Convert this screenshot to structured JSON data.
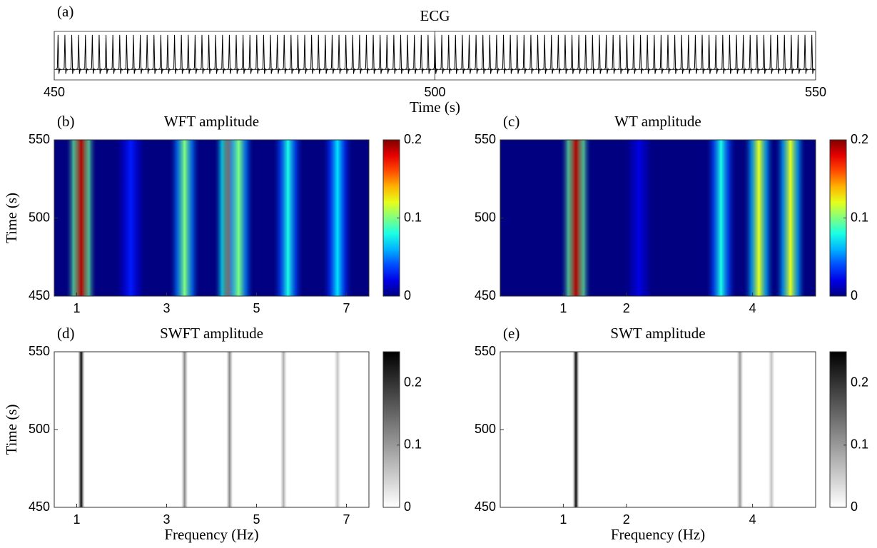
{
  "chart_data": [
    {
      "type": "line",
      "panel_label": "(a)",
      "title": "ECG",
      "xlabel": "Time (s)",
      "xlim": [
        450,
        550
      ],
      "xticks": [
        450,
        500,
        550
      ],
      "ylim": [
        -0.3,
        1.1
      ],
      "color": "#000000",
      "x": [
        450.5,
        451.4,
        452.3,
        453.2,
        454.1,
        455,
        455.9,
        456.8,
        457.7,
        458.6,
        459.5,
        460.4,
        461.3,
        462.2,
        463.1,
        464,
        464.9,
        465.8,
        466.7,
        467.6,
        468.5,
        469.4,
        470.3,
        471.2,
        472.1,
        473,
        473.9,
        474.8,
        475.7,
        476.6,
        477.5,
        478.4,
        479.3,
        480.2,
        481.1,
        482,
        482.9,
        483.8,
        484.7,
        485.6,
        486.5,
        487.4,
        488.3,
        489.2,
        490.1,
        491,
        491.9,
        492.8,
        493.7,
        494.6,
        495.5,
        496.4,
        497.3,
        498.2,
        499.1,
        500,
        500.9,
        501.8,
        502.7,
        503.6,
        504.5,
        505.4,
        506.3,
        507.2,
        508.1,
        509,
        509.9,
        510.8,
        511.7,
        512.6,
        513.5,
        514.4,
        515.3,
        516.2,
        517.1,
        518,
        518.9,
        519.8,
        520.7,
        521.6,
        522.5,
        523.4,
        524.3,
        525.2,
        526.1,
        527,
        527.9,
        528.8,
        529.7,
        530.6,
        531.5,
        532.4,
        533.3,
        534.2,
        535.1,
        536,
        536.9,
        537.8,
        538.7,
        539.6,
        540.5,
        541.4,
        542.3,
        543.2,
        544.1,
        545,
        545.9,
        546.8,
        547.7,
        548.6,
        549.5
      ],
      "values": [
        1,
        1,
        1,
        1,
        1,
        1,
        1,
        1,
        1,
        1,
        1,
        1,
        1,
        1,
        1,
        1,
        1,
        1,
        1,
        1,
        1,
        1,
        1,
        1,
        1,
        1,
        1,
        1,
        1,
        1,
        1,
        1,
        1,
        1,
        1,
        1,
        1,
        1,
        1,
        1,
        1,
        1,
        1,
        1,
        1,
        1,
        1,
        1,
        1,
        1,
        1,
        1,
        1,
        1,
        1,
        1,
        1,
        1,
        1,
        1,
        1,
        1,
        1,
        1,
        1,
        1,
        1,
        1,
        1,
        1,
        1,
        1,
        1,
        1,
        1,
        1,
        1,
        1,
        1,
        1,
        1,
        1,
        1,
        1,
        1,
        1,
        1,
        1,
        1,
        1,
        1,
        1,
        1,
        1,
        1,
        1,
        1,
        1,
        1,
        1,
        1,
        1,
        1,
        1,
        1,
        1,
        1,
        1,
        1,
        1,
        1
      ]
    },
    {
      "type": "heatmap",
      "panel_label": "(b)",
      "title": "WFT amplitude",
      "ylabel": "Time (s)",
      "colormap": "jet",
      "xlim": [
        0.5,
        7.5
      ],
      "xticks": [
        1,
        3,
        5,
        7
      ],
      "ylim": [
        450,
        550
      ],
      "yticks": [
        450,
        500,
        550
      ],
      "clim": [
        0,
        0.2
      ],
      "cticks": [
        0,
        0.1,
        0.2
      ],
      "ridges": {
        "x": [
          1.1,
          2.2,
          3.4,
          4.4,
          4.6,
          5.7,
          6.8
        ],
        "values": [
          0.19,
          0.03,
          0.1,
          0.15,
          0.1,
          0.08,
          0.07
        ]
      }
    },
    {
      "type": "heatmap",
      "panel_label": "(c)",
      "title": "WT amplitude",
      "colormap": "jet",
      "xlim": [
        0,
        5
      ],
      "xticks": [
        1,
        2,
        4
      ],
      "ylim": [
        450,
        550
      ],
      "yticks": [
        450,
        500,
        550
      ],
      "clim": [
        0,
        0.2
      ],
      "cticks": [
        0,
        0.1,
        0.2
      ],
      "ridges": {
        "x": [
          1.2,
          2.2,
          3.5,
          4.1,
          4.6
        ],
        "values": [
          0.19,
          0.02,
          0.08,
          0.12,
          0.12
        ]
      }
    },
    {
      "type": "heatmap",
      "panel_label": "(d)",
      "title": "SWFT amplitude",
      "ylabel": "Time (s)",
      "xlabel": "Frequency (Hz)",
      "colormap": "gray",
      "xlim": [
        0.5,
        7.5
      ],
      "xticks": [
        1,
        3,
        5,
        7
      ],
      "ylim": [
        450,
        550
      ],
      "yticks": [
        450,
        500,
        550
      ],
      "clim": [
        0,
        0.25
      ],
      "cticks": [
        0,
        0.1,
        0.2
      ],
      "ridges": {
        "x": [
          1.1,
          3.4,
          4.4,
          5.6,
          6.8
        ],
        "values": [
          0.25,
          0.12,
          0.12,
          0.08,
          0.06
        ]
      }
    },
    {
      "type": "heatmap",
      "panel_label": "(e)",
      "title": "SWT amplitude",
      "xlabel": "Frequency (Hz)",
      "colormap": "gray",
      "xlim": [
        0,
        5
      ],
      "xticks": [
        1,
        2,
        4
      ],
      "ylim": [
        450,
        550
      ],
      "yticks": [
        450,
        500,
        550
      ],
      "clim": [
        0,
        0.25
      ],
      "cticks": [
        0,
        0.1,
        0.2
      ],
      "ridges": {
        "x": [
          1.2,
          3.8,
          4.3
        ],
        "values": [
          0.25,
          0.1,
          0.06
        ]
      }
    }
  ]
}
